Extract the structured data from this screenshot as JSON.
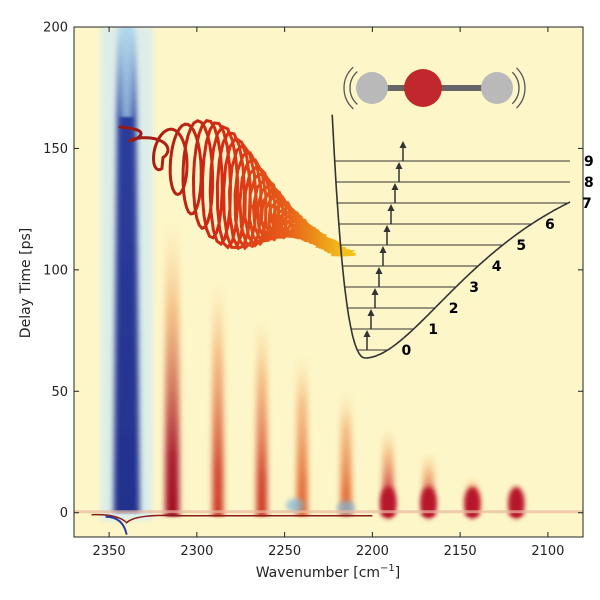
{
  "chart_data": {
    "type": "heatmap",
    "xlabel": "Wavenumber [cm",
    "xlabel_sup": "−1",
    "xlabel_end": "]",
    "ylabel": "Delay Time [ps]",
    "xlim": [
      2370,
      2080
    ],
    "ylim": [
      -10,
      200
    ],
    "xticks": [
      2350,
      2300,
      2250,
      2200,
      2150,
      2100
    ],
    "yticks": [
      0,
      50,
      100,
      150,
      200
    ],
    "colormap": "diverging red-yellow-blue",
    "colors": {
      "background": "#fdf6c8",
      "positive": "#b2182b",
      "negative": "#2c3e9c",
      "wave": "#e03a12",
      "atom_outer": "#b9b9b9",
      "atom_center": "#c0282d"
    },
    "bands": [
      {
        "wavenumber": 2340,
        "sign": -1,
        "decay_to": 200,
        "note": "bleach"
      },
      {
        "wavenumber": 2314,
        "sign": 1,
        "decay_to": 120
      },
      {
        "wavenumber": 2288,
        "sign": 1,
        "decay_to": 95
      },
      {
        "wavenumber": 2263,
        "sign": 1,
        "decay_to": 80
      },
      {
        "wavenumber": 2240,
        "sign": 1,
        "decay_to": 65
      },
      {
        "wavenumber": 2215,
        "sign": 1,
        "decay_to": 50
      },
      {
        "wavenumber": 2191,
        "sign": 1,
        "decay_to": 35
      },
      {
        "wavenumber": 2168,
        "sign": 1,
        "decay_to": 25
      },
      {
        "wavenumber": 2143,
        "sign": 1,
        "decay_to": 15
      },
      {
        "wavenumber": 2118,
        "sign": 1,
        "decay_to": 10
      }
    ],
    "inset": {
      "vibrational_levels": [
        "0",
        "1",
        "2",
        "3",
        "4",
        "5",
        "6",
        "7",
        "8",
        "9"
      ],
      "molecule_atoms": [
        "outer",
        "center",
        "outer"
      ]
    }
  }
}
